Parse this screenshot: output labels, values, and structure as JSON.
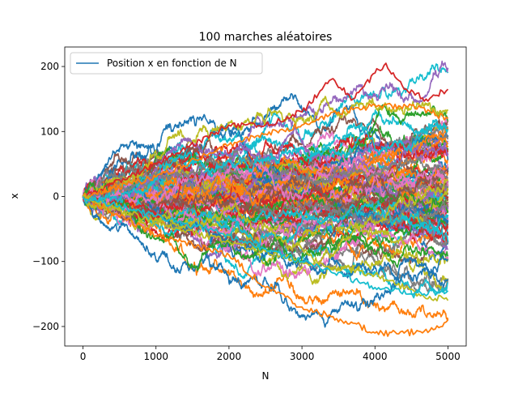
{
  "chart_data": {
    "type": "line",
    "title": "100 marches aléatoires",
    "xlabel": "N",
    "ylabel": "x",
    "xlim": [
      -250,
      5250
    ],
    "ylim": [
      -230,
      230
    ],
    "x_ticks": [
      0,
      1000,
      2000,
      3000,
      4000,
      5000
    ],
    "x_tick_labels": [
      "0",
      "1000",
      "2000",
      "3000",
      "4000",
      "5000"
    ],
    "y_ticks": [
      -200,
      -100,
      0,
      100,
      200
    ],
    "y_tick_labels": [
      "−200",
      "−100",
      "0",
      "100",
      "200"
    ],
    "grid": false,
    "legend": {
      "placement": "top-left",
      "entries": [
        {
          "label": "Position x en fonction de N",
          "color": "#1f77b4"
        }
      ]
    },
    "colors": [
      "#1f77b4",
      "#ff7f0e",
      "#2ca02c",
      "#d62728",
      "#9467bd",
      "#8c564b",
      "#e377c2",
      "#7f7f7f",
      "#bcbd22",
      "#17becf"
    ],
    "series_count": 100,
    "steps_per_series": 5000,
    "step_size": 1,
    "x_range": [
      0,
      5000
    ],
    "start_value": 0,
    "highlight_series": [
      {
        "color": "#d62728",
        "x": [
          0,
          1000,
          2000,
          2500,
          3000,
          3400,
          3700,
          4000,
          4150,
          4400,
          4700,
          5000
        ],
        "y": [
          0,
          50,
          110,
          110,
          130,
          180,
          150,
          190,
          205,
          165,
          150,
          165
        ]
      },
      {
        "color": "#ff7f0e",
        "x": [
          0,
          1000,
          2000,
          2500,
          3000,
          3400,
          3700,
          4000,
          4400,
          4800,
          5000
        ],
        "y": [
          0,
          -60,
          -90,
          -140,
          -170,
          -185,
          -195,
          -210,
          -210,
          -205,
          -190
        ]
      },
      {
        "color": "#ff7f0e",
        "x": [
          0,
          1000,
          2000,
          3000,
          3500,
          4000,
          4500,
          5000
        ],
        "y": [
          0,
          30,
          80,
          110,
          130,
          140,
          140,
          120
        ]
      },
      {
        "color": "#bcbd22",
        "x": [
          0,
          1000,
          2000,
          3000,
          4000,
          4600,
          5000
        ],
        "y": [
          0,
          -40,
          -70,
          -100,
          -120,
          -150,
          -160
        ]
      },
      {
        "color": "#17becf",
        "x": [
          0,
          1000,
          2000,
          3000,
          4000,
          4500,
          5000
        ],
        "y": [
          0,
          -30,
          -60,
          -100,
          -140,
          -150,
          -145
        ]
      }
    ]
  }
}
